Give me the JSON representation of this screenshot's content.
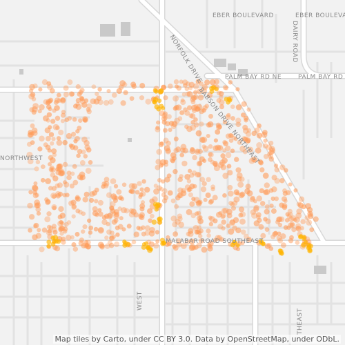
{
  "map": {
    "road_labels": [
      {
        "id": "eber-1",
        "text": "EBER BOULEVARD"
      },
      {
        "id": "eber-2",
        "text": "EBER BOULEVARD"
      },
      {
        "id": "dairy",
        "text": "DAIRY ROAD"
      },
      {
        "id": "norfolk",
        "text": "NORFOLK DRIVE"
      },
      {
        "id": "palm-bay-1",
        "text": "PALM BAY RD NE"
      },
      {
        "id": "palm-bay-2",
        "text": "PALM BAY RD"
      },
      {
        "id": "babson",
        "text": "BABSON DRIVE NORTHEAST"
      },
      {
        "id": "northwest",
        "text": "NORTHWEST"
      },
      {
        "id": "malabar",
        "text": "MALABAR ROAD SOUTHEAST"
      },
      {
        "id": "west",
        "text": "WEST"
      },
      {
        "id": "theast",
        "text": "THEAST"
      }
    ],
    "attribution": "Map tiles by Carto, under CC BY 3.0. Data by OpenStreetMap, under ODbL.",
    "colors": {
      "background": "#f2f2f2",
      "road_major": "#ffffff",
      "road_casing": "#d8d8d8",
      "building": "#c9c9c9",
      "heat_point": "#ff9955",
      "heat_hot": "#ffb400"
    }
  }
}
